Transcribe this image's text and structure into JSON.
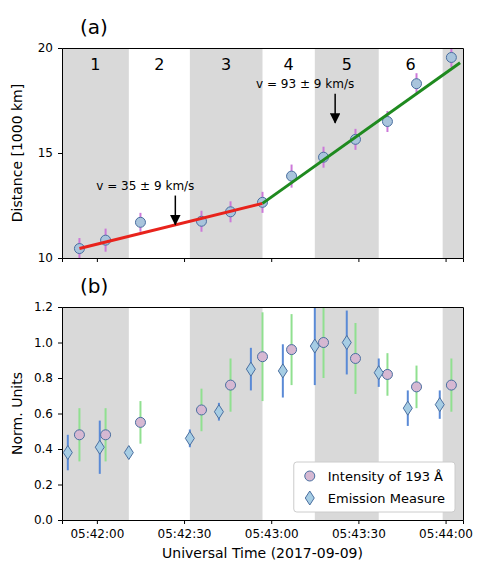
{
  "chart_data": [
    {
      "type": "scatter",
      "title": "(a)",
      "ylabel": "Distance [1000 km]",
      "xlim": [
        20508,
        20646
      ],
      "xticks": [
        20520,
        20550,
        20580,
        20610,
        20640
      ],
      "ylim": [
        10,
        20
      ],
      "yticks": [
        10,
        15,
        20
      ],
      "tick_labels": "y",
      "bands": {
        "edges": [
          20508,
          20531,
          20552,
          20577,
          20595,
          20617,
          20639,
          20646
        ],
        "labels": [
          "1",
          "2",
          "3",
          "4",
          "5",
          "6",
          null
        ],
        "color": "#d9d9d9"
      },
      "series": [
        {
          "type": "errorbar",
          "color": "#cc79d9",
          "x": [
            20514,
            20523,
            20535,
            20556,
            20566,
            20577,
            20587,
            20598,
            20609,
            20620,
            20630,
            20642
          ],
          "values": [
            10.45,
            10.85,
            11.7,
            11.75,
            12.2,
            12.65,
            13.9,
            14.8,
            15.65,
            16.5,
            18.3,
            19.55
          ],
          "errors": [
            0.5,
            0.55,
            0.45,
            0.5,
            0.5,
            0.5,
            0.55,
            0.5,
            0.5,
            0.5,
            0.5,
            0.45
          ]
        },
        {
          "type": "scatter",
          "marker": "circle",
          "color": "#a9c4dc",
          "x": [
            20514,
            20523,
            20535,
            20556,
            20566,
            20577,
            20587,
            20598,
            20609,
            20620,
            20630,
            20642
          ],
          "values": [
            10.45,
            10.85,
            11.7,
            11.75,
            12.2,
            12.65,
            13.9,
            14.8,
            15.65,
            16.5,
            18.3,
            19.55
          ]
        },
        {
          "type": "line",
          "color": "#e8231c",
          "x": [
            20514,
            20577
          ],
          "values": [
            10.45,
            12.6
          ]
        },
        {
          "type": "line",
          "color": "#1f8a1f",
          "x": [
            20577,
            20645
          ],
          "values": [
            12.6,
            19.3
          ]
        }
      ],
      "annotations": [
        {
          "text": "v = 35 ± 9 km/s",
          "x": 20547,
          "y": 11.45
        },
        {
          "text": "v = 93 ± 9 km/s",
          "x": 20602,
          "y": 16.3
        }
      ]
    },
    {
      "type": "scatter",
      "title": "(b)",
      "xlabel": "Universal Time (2017-09-09)",
      "ylabel": "Norm. Units",
      "xlim": [
        20508,
        20646
      ],
      "xticks": [
        {
          "value": 20520,
          "label": "05:42:00"
        },
        {
          "value": 20550,
          "label": "05:42:30"
        },
        {
          "value": 20580,
          "label": "05:43:00"
        },
        {
          "value": 20610,
          "label": "05:43:30"
        },
        {
          "value": 20640,
          "label": "05:44:00"
        }
      ],
      "ylim": [
        0,
        1.2
      ],
      "yticks": [
        {
          "value": 0,
          "label": "0.0"
        },
        {
          "value": 0.2,
          "label": "0.2"
        },
        {
          "value": 0.4,
          "label": "0.4"
        },
        {
          "value": 0.6,
          "label": "0.6"
        },
        {
          "value": 0.8,
          "label": "0.8"
        },
        {
          "value": 1,
          "label": "1.0"
        },
        {
          "value": 1.2,
          "label": "1.2"
        }
      ],
      "legend": "lower right",
      "bands": {
        "edges": [
          20508,
          20531,
          20552,
          20577,
          20595,
          20617,
          20639,
          20646
        ],
        "color": "#d9d9d9"
      },
      "series": [
        {
          "type": "errorbar",
          "color": "#90e090",
          "x": [
            20514,
            20523,
            20535,
            20556,
            20566,
            20577,
            20587,
            20598,
            20609,
            20620,
            20630,
            20642
          ],
          "values": [
            0.48,
            0.48,
            0.55,
            0.62,
            0.76,
            0.92,
            0.96,
            1.0,
            0.91,
            0.82,
            0.75,
            0.76
          ],
          "errors": [
            0.15,
            0.15,
            0.12,
            0.12,
            0.15,
            0.25,
            0.2,
            0.2,
            0.2,
            0.12,
            0.12,
            0.15
          ]
        },
        {
          "type": "errorbar",
          "color": "#5a8ad6",
          "x": [
            20510,
            20521,
            20531,
            20552,
            20562,
            20573,
            20584,
            20595,
            20606,
            20617,
            20627,
            20638
          ],
          "values": [
            0.38,
            0.41,
            0.38,
            0.46,
            0.61,
            0.85,
            0.84,
            0.98,
            1.0,
            0.83,
            0.63,
            0.65
          ],
          "errors": [
            0.1,
            0.15,
            0.02,
            0.05,
            0.05,
            0.12,
            0.15,
            0.22,
            0.18,
            0.08,
            0.1,
            0.08
          ]
        },
        {
          "type": "scatter",
          "marker": "circle",
          "color": "#d6b8d2",
          "name": "Intensity of 193 Å",
          "x": [
            20514,
            20523,
            20535,
            20556,
            20566,
            20577,
            20587,
            20598,
            20609,
            20620,
            20630,
            20642
          ],
          "values": [
            0.48,
            0.48,
            0.55,
            0.62,
            0.76,
            0.92,
            0.96,
            1.0,
            0.91,
            0.82,
            0.75,
            0.76
          ]
        },
        {
          "type": "scatter",
          "marker": "diamond",
          "color": "#a6cde4",
          "name": "Emission Measure",
          "x": [
            20510,
            20521,
            20531,
            20552,
            20562,
            20573,
            20584,
            20595,
            20606,
            20617,
            20627,
            20638
          ],
          "values": [
            0.38,
            0.41,
            0.38,
            0.46,
            0.61,
            0.85,
            0.84,
            0.98,
            1.0,
            0.83,
            0.63,
            0.65
          ]
        }
      ]
    }
  ]
}
